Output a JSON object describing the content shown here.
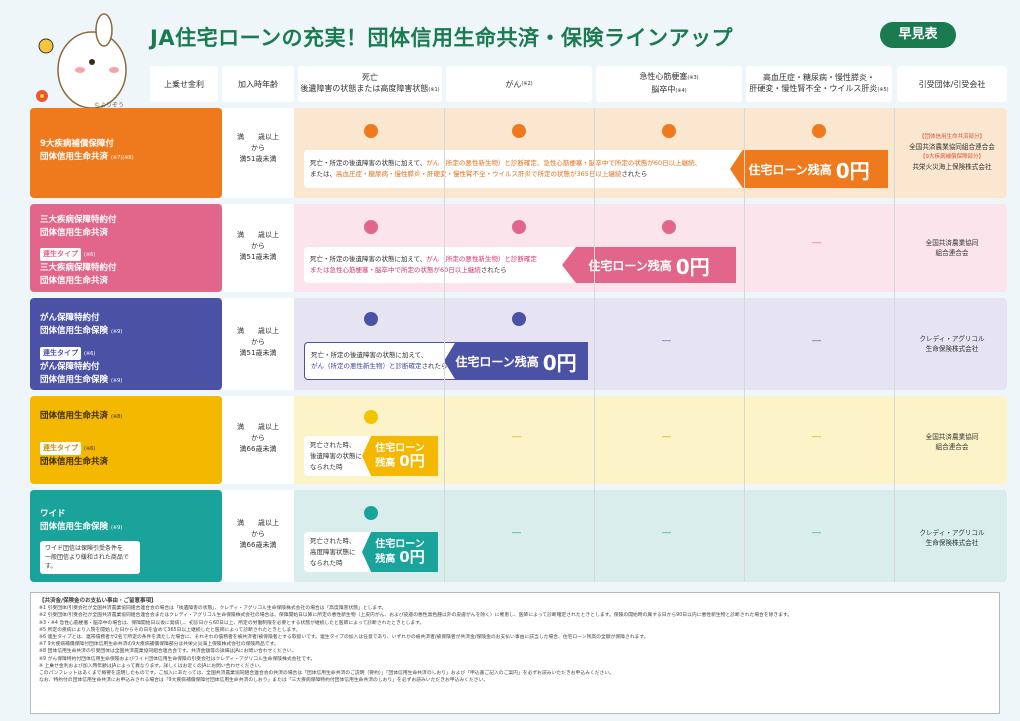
{
  "header": {
    "title": "JA住宅ローンの充実！団体信用生命共済・保険ラインアップ",
    "badge": "早見表",
    "mascot_caption": "©よりぞう"
  },
  "columns": {
    "rate": "上乗せ金利",
    "age": "加入時年齢",
    "death_line1": "死亡",
    "death_line2": "後遺障害の状態または高度障害状態",
    "death_note": "(※1)",
    "cancer": "がん",
    "cancer_note": "(※2)",
    "heart_line1": "急性心筋梗塞",
    "heart_note1": "(※3)",
    "heart_line2": "脳卒中",
    "heart_note2": "(※4)",
    "chronic_line1": "高血圧症・糖尿病・慢性膵炎・",
    "chronic_line2": "肝硬変・慢性腎不全・ウイルス肝炎",
    "chronic_note": "(※5)",
    "insurer": "引受団体/引受会社"
  },
  "rows": {
    "r1": {
      "line1": "9大疾病補償保障付",
      "line2": "団体信用生命共済",
      "note": "(※7)(※8)",
      "age_l1": "満　　歳以上",
      "age_l2": "から",
      "age_l3": "満51歳未満",
      "callout_a": "死亡・所定の後遺障害の状態に加えて、",
      "callout_b": "がん（所定の悪性新生物）と診断確定、急性心筋梗塞・脳卒中で所定の状態が60日以上継続、",
      "callout_c": "または、",
      "callout_d": "高血圧症・糖尿病・慢性膵炎・肝硬変・慢性腎不全・ウイルス肝炎で所定の状態が365日以上継続",
      "callout_e": "されたら",
      "banner": "住宅ローン残高",
      "zero": "0円",
      "ins_red1": "【団体信用生命共済部分】",
      "ins1": "全国共済農業協同組合連合会",
      "ins_red2": "【9大疾病補償保障部分】",
      "ins2": "共栄火災海上保険株式会社",
      "color": "#ee7a1d"
    },
    "r2": {
      "line1": "三大疾病保障特約付",
      "line2": "団体信用生命共済",
      "tag": "連生タイプ",
      "tag_note": "(※6)",
      "line3": "三大疾病保障特約付",
      "line4": "団体信用生命共済",
      "age_l1": "満　　歳以上",
      "age_l2": "から",
      "age_l3": "満51歳未満",
      "callout_a": "死亡・所定の後遺障害の状態に加えて、",
      "callout_b": "がん（所定の悪性新生物）と診断確定",
      "callout_c": "または急性心筋梗塞・脳卒中で所定の状態が60日以上継続",
      "callout_d": "されたら",
      "banner": "住宅ローン残高",
      "zero": "0円",
      "dash": "―",
      "ins1": "全国共済農業協同",
      "ins2": "組合連合会",
      "color": "#e2658a"
    },
    "r3": {
      "line1": "がん保障特約付",
      "line2": "団体信用生命保険",
      "note": "(※9)",
      "tag": "連生タイプ",
      "tag_note": "(※6)",
      "line3": "がん保障特約付",
      "line4": "団体信用生命保険",
      "note2": "(※9)",
      "age_l1": "満　　歳以上",
      "age_l2": "から",
      "age_l3": "満51歳未満",
      "callout_a": "死亡・所定の後遺障害の状態に加えて、",
      "callout_b": "がん（所定の悪性新生物）と診断確定",
      "callout_c": "されたら",
      "banner": "住宅ローン残高",
      "zero": "0円",
      "dash": "―",
      "ins1": "クレディ・アグリコル",
      "ins2": "生命保険株式会社",
      "color": "#4b52a5"
    },
    "r4": {
      "line1": "団体信用生命共済",
      "note": "(※8)",
      "tag": "連生タイプ",
      "tag_note": "(※6)",
      "line2": "団体信用生命共済",
      "age_l1": "満　　歳以上",
      "age_l2": "から",
      "age_l3": "満66歳未満",
      "callout_a": "死亡された時、",
      "callout_b": "後遺障害の状態に",
      "callout_c": "なられた時",
      "banner1": "住宅ローン",
      "banner2": "残高",
      "zero": "0円",
      "dash": "―",
      "ins1": "全国共済農業協同",
      "ins2": "組合連合会",
      "color": "#f4b800"
    },
    "r5": {
      "line1": "ワイド",
      "line2": "団体信用生命保険",
      "note": "(※9)",
      "sub1": "ワイド団信は保険引受条件を",
      "sub2": "一般団信より緩和された商品です。",
      "age_l1": "満　　歳以上",
      "age_l2": "から",
      "age_l3": "満66歳未満",
      "callout_a": "死亡された時、",
      "callout_b": "高度障害状態に",
      "callout_c": "なられた時",
      "banner1": "住宅ローン",
      "banner2": "残高",
      "zero": "0円",
      "dash": "―",
      "ins1": "クレディ・アグリコル",
      "ins2": "生命保険株式会社",
      "color": "#1aa39a"
    }
  },
  "notes": {
    "title": "【共済金/保険金のお支払い事由・ご留意事項】",
    "lines": [
      "※1 引受団体/引受会社が全国共済農業協同組合連合会の場合は「後遺障害の状態」、クレディ・アグリコル生命保険株式会社の場合は「高度障害状態」とします。",
      "※2 引受団体/引受会社が全国共済農業協同組合連合会またはクレディ・アグリコル生命保険株式会社の場合は、保障開始日以降に所定の悪性新生物（上皮内がん、および皮膚の悪性黒色腫以外の皮膚がんを除く）に罹患し、医師によって診断確定されたときとします。保険の開始時の属する日から90日以内に悪性新生物と診断された場合を除きます。",
      "※3・※4 急性心筋梗塞・脳卒中の場合は、保障開始日以後に発病し、初診日から60日以上、所定の労働制限を必要とする状態が継続したと医師によって診断されたときとします。",
      "※5 所定の疾病により入院を開始した日からその日を含めて365日以上継続したと医師によって診断されたときとします。",
      "※6 連生タイプとは、連帯債務者が2名で所定の条件を満たした場合に、それぞれの債務者を被共済者/被保険者とする取扱いです。連生タイプの加入は任意であり、いずれかの被共済者/被保険者が共済金/保険金のお支払い事由に該当した場合、住宅ローン残高の全額が保障されます。",
      "※7 9大疾病補償保障付団体信用生命共済の9大疾病補償保障部分は共栄火災海上保険株式会社の保険商品です。",
      "※8 団体信用生命共済の引受団体は全国共済農業協同組合連合会です。共済金額等の詳細はJAにお問い合わせください。",
      "※9 がん保障特約付団体信用生命保険およびワイド団体信用生命保険の引受会社はクレディ・アグリコル生命保険株式会社です。",
      "※ 上乗せ金利および加入時年齢はJAによって異なります。詳しくはお近くのJAにお問い合わせください。",
      "このパンフレットはあくまで概要を説明したものです。ご加入にあたっては、全国共済農業協同組合連合会の共済の場合は「団体信用生命共済のご説明（要約）」「団体信用生命共済のしおり」および「申込書ご記入のご案内」を必ずお読みいただきお申込みください。",
      "なお、特約付の団体信用生命共済にお申込みされる場合は「9大疾病補償保障付団体信用生命共済のしおり」または「三大疾病保障特約付団体信用生命共済のしおり」を必ずお読みいただきお申込みください。"
    ]
  }
}
